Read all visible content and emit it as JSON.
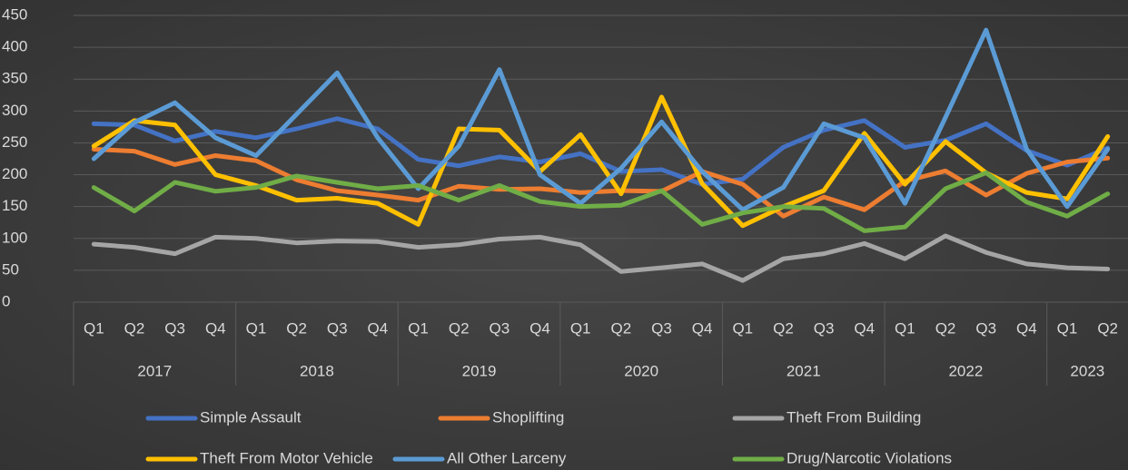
{
  "chart_data": {
    "type": "line",
    "category_groups": [
      {
        "label": "2017",
        "categories": [
          "Q1",
          "Q2",
          "Q3",
          "Q4"
        ]
      },
      {
        "label": "2018",
        "categories": [
          "Q1",
          "Q2",
          "Q3",
          "Q4"
        ]
      },
      {
        "label": "2019",
        "categories": [
          "Q1",
          "Q2",
          "Q3",
          "Q4"
        ]
      },
      {
        "label": "2020",
        "categories": [
          "Q1",
          "Q2",
          "Q3",
          "Q4"
        ]
      },
      {
        "label": "2021",
        "categories": [
          "Q1",
          "Q2",
          "Q3",
          "Q4"
        ]
      },
      {
        "label": "2022",
        "categories": [
          "Q1",
          "Q2",
          "Q3",
          "Q4"
        ]
      },
      {
        "label": "2023",
        "categories": [
          "Q1",
          "Q2"
        ]
      }
    ],
    "series": [
      {
        "name": "Simple Assault",
        "color": "#4472c4",
        "values": [
          280,
          278,
          253,
          268,
          258,
          272,
          288,
          272,
          224,
          214,
          228,
          220,
          233,
          205,
          208,
          185,
          193,
          243,
          270,
          285,
          243,
          254,
          280,
          238,
          215,
          242
        ]
      },
      {
        "name": "Shoplifting",
        "color": "#ed7d31",
        "values": [
          240,
          237,
          216,
          230,
          222,
          192,
          175,
          168,
          160,
          182,
          177,
          178,
          172,
          175,
          174,
          205,
          185,
          135,
          165,
          145,
          190,
          206,
          168,
          202,
          220,
          226
        ]
      },
      {
        "name": "Theft From Building",
        "color": "#a5a5a5",
        "values": [
          91,
          86,
          76,
          102,
          100,
          93,
          96,
          95,
          86,
          90,
          99,
          102,
          90,
          48,
          54,
          60,
          34,
          68,
          76,
          92,
          68,
          104,
          78,
          60,
          54,
          52
        ]
      },
      {
        "name": "Theft From Motor Vehicle",
        "color": "#ffc000",
        "values": [
          245,
          285,
          278,
          200,
          183,
          160,
          163,
          155,
          122,
          272,
          270,
          205,
          263,
          170,
          322,
          186,
          120,
          150,
          175,
          265,
          185,
          252,
          203,
          172,
          162,
          260
        ]
      },
      {
        "name": "All Other Larceny",
        "color": "#5b9bd5",
        "values": [
          225,
          282,
          313,
          258,
          230,
          295,
          360,
          258,
          178,
          245,
          365,
          200,
          155,
          210,
          283,
          205,
          145,
          180,
          280,
          258,
          155,
          290,
          427,
          240,
          150,
          240
        ]
      },
      {
        "name": "Drug/Narcotic Violations",
        "color": "#70ad47",
        "values": [
          180,
          143,
          188,
          174,
          180,
          198,
          188,
          178,
          183,
          160,
          183,
          158,
          150,
          152,
          175,
          122,
          140,
          150,
          147,
          112,
          118,
          178,
          203,
          157,
          135,
          170
        ]
      }
    ],
    "ylim": [
      0,
      450
    ],
    "yticks": [
      0,
      50,
      100,
      150,
      200,
      250,
      300,
      350,
      400,
      450
    ],
    "grid": true
  }
}
